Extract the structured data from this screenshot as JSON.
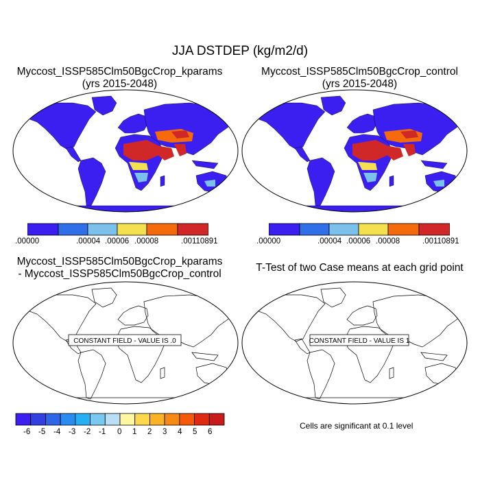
{
  "figure": {
    "title": "JJA DSTDEP (kg/m2/d)",
    "colors": {
      "seq": [
        "#3a1ff0",
        "#2f6fe8",
        "#7cc0ec",
        "#f5e050",
        "#f56a0a",
        "#d02828"
      ],
      "div": [
        "#3a1ff0",
        "#3340e0",
        "#2f66e8",
        "#2a8cf0",
        "#25b0f5",
        "#78c8f0",
        "#b8def8",
        "#fff8a0",
        "#fcd84c",
        "#fbb325",
        "#f78a14",
        "#f55a0a",
        "#e02a10",
        "#c81c1c"
      ]
    }
  },
  "panels": {
    "p1": {
      "title_line1": "Myccost_ISSP585Clm50BgcCrop_kparams",
      "title_line2": "(yrs 2015-2048)",
      "colorbar_labels": [
        ".00000",
        ".00004",
        ".00006",
        ".00008",
        ".00110891"
      ]
    },
    "p2": {
      "title_line1": "Myccost_ISSP585Clm50BgcCrop_control",
      "title_line2": "(yrs 2015-2048)",
      "colorbar_labels": [
        ".00000",
        ".00004",
        ".00006",
        ".00008",
        ".00110891"
      ]
    },
    "p3": {
      "title_line1": "Myccost_ISSP585Clm50BgcCrop_kparams",
      "title_line2": "- Myccost_ISSP585Clm50BgcCrop_control",
      "field_label": "CONSTANT FIELD - VALUE IS .0",
      "colorbar_labels": [
        "-6",
        "-5",
        "-4",
        "-3",
        "-2",
        "-1",
        "0",
        "1",
        "2",
        "3",
        "4",
        "5",
        "6"
      ]
    },
    "p4": {
      "title_line1": "T-Test of two Case means at each grid point",
      "field_label": "CONSTANT FIELD - VALUE IS 1",
      "note": "Cells are significant at 0.1 level"
    }
  }
}
